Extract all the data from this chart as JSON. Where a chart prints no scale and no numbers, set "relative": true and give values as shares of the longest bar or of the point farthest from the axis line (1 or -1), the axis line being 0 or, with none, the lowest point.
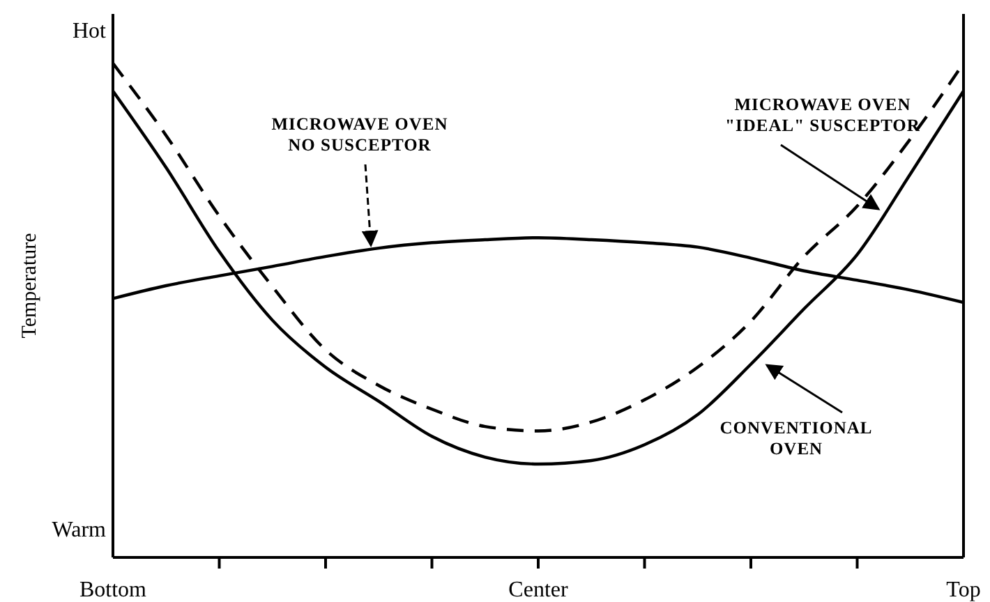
{
  "chart_data": {
    "type": "line",
    "relative": true,
    "ylabel": "Temperature",
    "annotations": [
      "Hot",
      "Warm"
    ],
    "categories": [
      "Bottom",
      null,
      null,
      null,
      null,
      null,
      null,
      null,
      "Center",
      null,
      null,
      null,
      null,
      null,
      null,
      null,
      "Top"
    ],
    "grid": false,
    "legend": false,
    "marker": "none",
    "series": [
      {
        "name": "MICROWAVE OVEN NO SUSCEPTOR",
        "color": "#000000",
        "line_style": "solid",
        "values": [
          0.524,
          0.55,
          0.57,
          0.589,
          0.609,
          0.626,
          0.637,
          0.643,
          0.647,
          0.643,
          0.637,
          0.628,
          0.606,
          0.58,
          0.561,
          0.541,
          0.516
        ]
      },
      {
        "name": "MICROWAVE OVEN \"IDEAL\" SUSCEPTOR",
        "color": "#000000",
        "line_style": "dashed",
        "values": [
          1,
          0.854,
          0.691,
          0.548,
          0.42,
          0.348,
          0.3,
          0.265,
          0.256,
          0.274,
          0.319,
          0.385,
          0.478,
          0.609,
          0.711,
          0.847,
          1
        ]
      },
      {
        "name": "CONVENTIONAL OVEN",
        "color": "#000000",
        "line_style": "solid",
        "values": [
          0.944,
          0.789,
          0.619,
          0.48,
          0.385,
          0.316,
          0.245,
          0.203,
          0.189,
          0.196,
          0.228,
          0.289,
          0.391,
          0.503,
          0.613,
          0.776,
          0.944
        ]
      }
    ]
  }
}
